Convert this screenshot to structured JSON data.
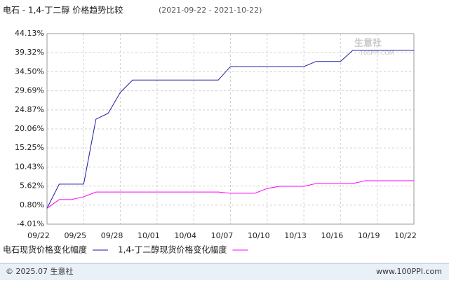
{
  "chart_data": {
    "type": "line",
    "title": "电石 - 1,4-丁二醇 价格趋势比较",
    "subtitle": "(2021-09-22 - 2021-10-22)",
    "x": [
      "09/22",
      "09/23",
      "09/24",
      "09/25",
      "09/26",
      "09/27",
      "09/28",
      "09/29",
      "09/30",
      "10/01",
      "10/02",
      "10/03",
      "10/04",
      "10/05",
      "10/06",
      "10/07",
      "10/08",
      "10/09",
      "10/10",
      "10/11",
      "10/12",
      "10/13",
      "10/14",
      "10/15",
      "10/16",
      "10/17",
      "10/18",
      "10/19",
      "10/20",
      "10/21",
      "10/22"
    ],
    "series": [
      {
        "name": "电石现货价格变化幅度",
        "color": "#1a1aa6",
        "values": [
          0,
          6.1,
          6.1,
          6.1,
          22.5,
          24.0,
          29.3,
          32.4,
          32.4,
          32.4,
          32.4,
          32.4,
          32.4,
          32.4,
          32.4,
          35.8,
          35.8,
          35.8,
          35.8,
          35.8,
          35.8,
          35.8,
          37.1,
          37.1,
          37.1,
          39.9,
          39.9,
          39.9,
          39.9,
          39.9,
          39.9
        ]
      },
      {
        "name": "1,4-丁二醇现货价格变化幅度",
        "color": "#ff00ff",
        "values": [
          0,
          2.2,
          2.2,
          2.9,
          4.1,
          4.1,
          4.1,
          4.1,
          4.1,
          4.1,
          4.1,
          4.1,
          4.1,
          4.1,
          4.1,
          3.8,
          3.8,
          3.8,
          5.0,
          5.55,
          5.55,
          5.55,
          6.25,
          6.25,
          6.25,
          6.25,
          6.96,
          6.96,
          6.96,
          6.96,
          6.96
        ]
      }
    ],
    "xlim": [
      "09/22",
      "10/22"
    ],
    "xticks": [
      "09/22",
      "09/25",
      "09/28",
      "10/01",
      "10/04",
      "10/07",
      "10/10",
      "10/13",
      "10/16",
      "10/19",
      "10/22"
    ],
    "ylim": [
      -4.01,
      44.13
    ],
    "yticks": [
      {
        "value": -4.01,
        "label": "-4.01%"
      },
      {
        "value": 0.8,
        "label": "0.80%"
      },
      {
        "value": 5.62,
        "label": "5.62%"
      },
      {
        "value": 10.43,
        "label": "10.43%"
      },
      {
        "value": 15.25,
        "label": "15.25%"
      },
      {
        "value": 20.06,
        "label": "20.06%"
      },
      {
        "value": 24.87,
        "label": "24.87%"
      },
      {
        "value": 29.69,
        "label": "29.69%"
      },
      {
        "value": 34.5,
        "label": "34.50%"
      },
      {
        "value": 39.32,
        "label": "39.32%"
      },
      {
        "value": 44.13,
        "label": "44.13%"
      }
    ],
    "grid": true,
    "watermark": {
      "name": "生意社",
      "site": "100PPI.COM"
    },
    "footer": {
      "copyright": "© 2025.07 生意社",
      "url": "www.100PPI.com"
    }
  }
}
